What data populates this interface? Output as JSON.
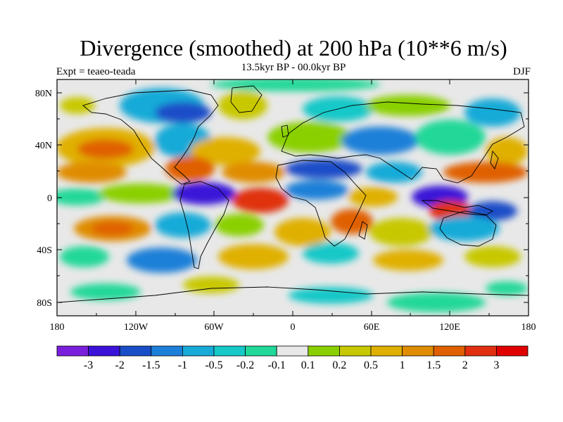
{
  "map": {
    "title": "Divergence (smoothed) at 200 hPa (10**6 m/s)",
    "subtitle": "13.5kyr BP - 00.0kyr BP",
    "left_label": "Expt = teaeo-teada",
    "right_label": "DJF",
    "lat_ticks": [
      "80N",
      "40N",
      "0",
      "40S",
      "80S"
    ],
    "lon_ticks": [
      "180",
      "120W",
      "60W",
      "0",
      "60E",
      "120E",
      "180"
    ],
    "colors": {
      "background": "#e8e8e8",
      "frame": "#000000",
      "land_outline": "#000000"
    }
  },
  "legend": {
    "colors": [
      "#7a1fdc",
      "#3b12d8",
      "#1a4ec8",
      "#1c80d8",
      "#17aad8",
      "#17c8c8",
      "#20d898",
      "#e8e8e8",
      "#8ad000",
      "#c8c800",
      "#e0b000",
      "#e08c00",
      "#e06000",
      "#e03010",
      "#e00000"
    ],
    "labels": [
      "-3",
      "-2",
      "-1.5",
      "-1",
      "-0.5",
      "-0.2",
      "-0.1",
      "0.1",
      "0.2",
      "0.5",
      "1",
      "1.5",
      "2",
      "3"
    ]
  }
}
